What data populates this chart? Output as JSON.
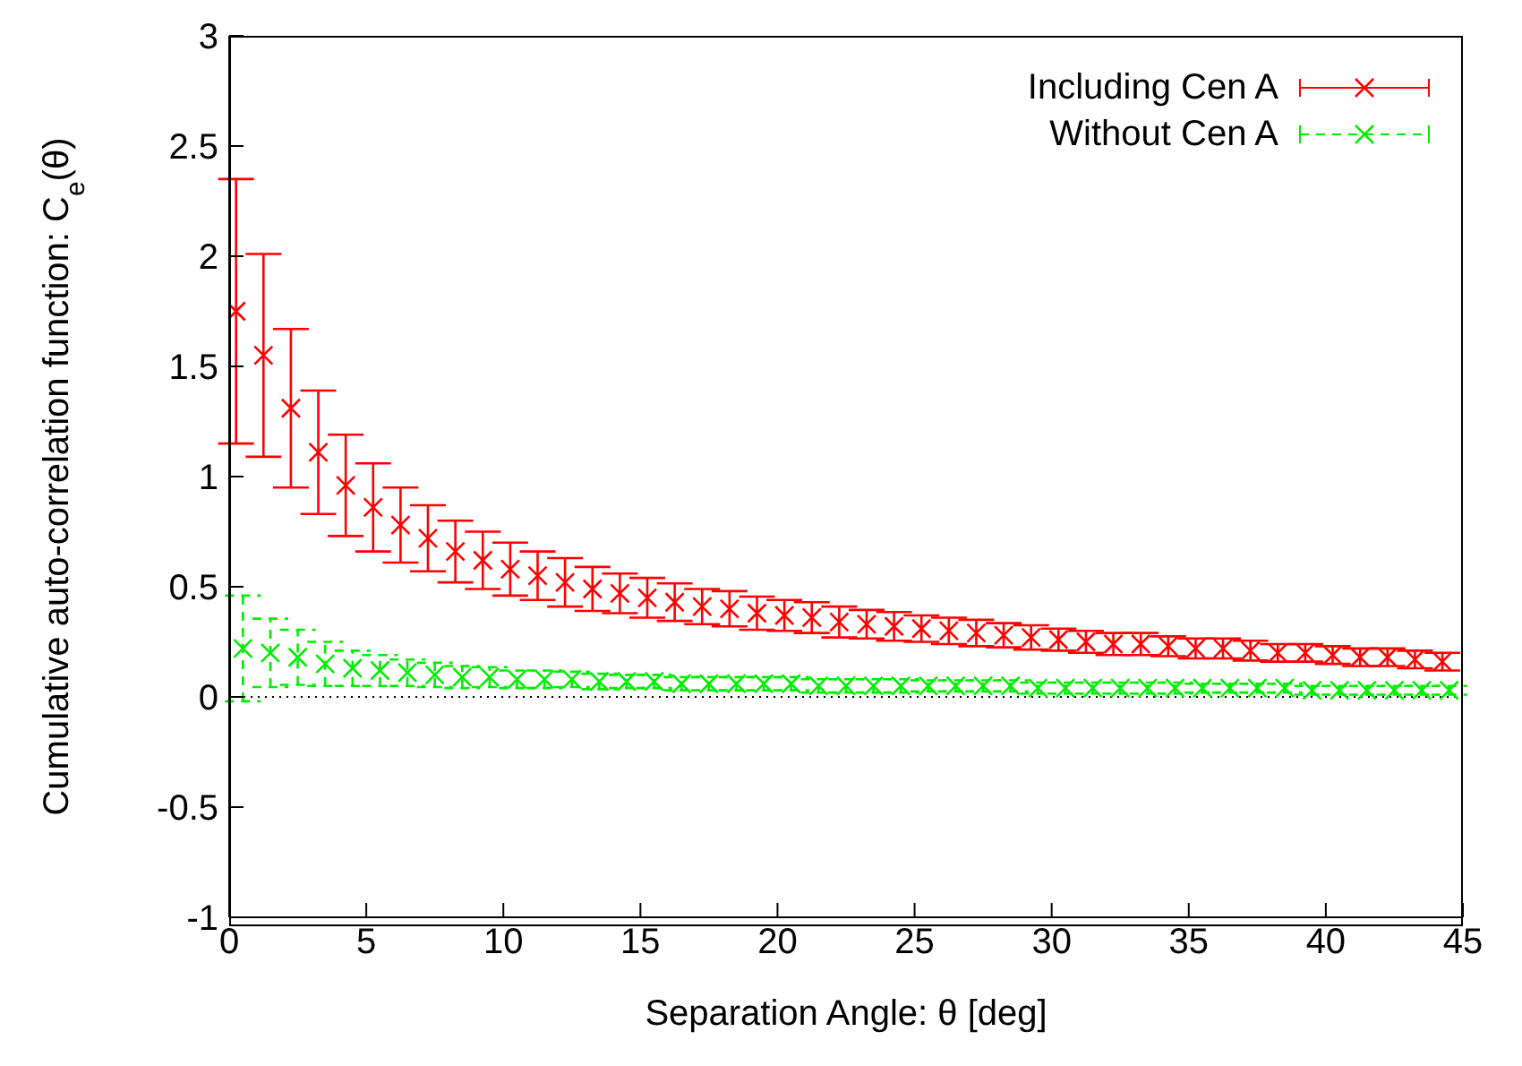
{
  "chart_data": {
    "type": "scatter",
    "xlabel": "Separation Angle: θ [deg]",
    "ylabel": "Cumulative auto-correlation function: C$_{e}$(θ)",
    "xlim": [
      0,
      45
    ],
    "xticks": [
      0,
      5,
      10,
      15,
      20,
      25,
      30,
      35,
      40,
      45
    ],
    "ylim": [
      -1,
      3
    ],
    "yticks": [
      -1,
      -0.5,
      0,
      0.5,
      1,
      1.5,
      2,
      2.5,
      3
    ],
    "legend": "top right",
    "marker": "cross",
    "ref_lines": [
      {
        "axis": "y",
        "value": 0,
        "color": "#000000",
        "line_style": "dotted"
      }
    ],
    "series": [
      {
        "name": "Including Cen A",
        "color": "#ff0000",
        "line_style": "solid",
        "x": [
          0.25,
          1.25,
          2.25,
          3.25,
          4.25,
          5.25,
          6.25,
          7.25,
          8.25,
          9.25,
          10.25,
          11.25,
          12.25,
          13.25,
          14.25,
          15.25,
          16.25,
          17.25,
          18.25,
          19.25,
          20.25,
          21.25,
          22.25,
          23.25,
          24.25,
          25.25,
          26.25,
          27.25,
          28.25,
          29.25,
          30.25,
          31.25,
          32.25,
          33.25,
          34.25,
          35.25,
          36.25,
          37.25,
          38.25,
          39.25,
          40.25,
          41.25,
          42.25,
          43.25,
          44.25
        ],
        "values": [
          1.75,
          1.55,
          1.31,
          1.11,
          0.96,
          0.86,
          0.78,
          0.72,
          0.66,
          0.62,
          0.58,
          0.55,
          0.52,
          0.49,
          0.47,
          0.45,
          0.43,
          0.41,
          0.4,
          0.38,
          0.37,
          0.36,
          0.34,
          0.33,
          0.32,
          0.31,
          0.3,
          0.29,
          0.28,
          0.27,
          0.26,
          0.25,
          0.24,
          0.24,
          0.23,
          0.22,
          0.22,
          0.21,
          0.2,
          0.2,
          0.19,
          0.18,
          0.18,
          0.17,
          0.16
        ],
        "errors": [
          0.6,
          0.46,
          0.36,
          0.28,
          0.23,
          0.2,
          0.17,
          0.15,
          0.14,
          0.13,
          0.12,
          0.11,
          0.11,
          0.1,
          0.09,
          0.09,
          0.085,
          0.08,
          0.08,
          0.075,
          0.07,
          0.07,
          0.07,
          0.065,
          0.065,
          0.06,
          0.06,
          0.06,
          0.055,
          0.055,
          0.05,
          0.05,
          0.05,
          0.05,
          0.045,
          0.045,
          0.045,
          0.045,
          0.04,
          0.04,
          0.04,
          0.04,
          0.04,
          0.04,
          0.04
        ]
      },
      {
        "name": "Without Cen A",
        "color": "#00ee00",
        "line_style": "dashed",
        "x": [
          0.5,
          1.5,
          2.5,
          3.5,
          4.5,
          5.5,
          6.5,
          7.5,
          8.5,
          9.5,
          10.5,
          11.5,
          12.5,
          13.5,
          14.5,
          15.5,
          16.5,
          17.5,
          18.5,
          19.5,
          20.5,
          21.5,
          22.5,
          23.5,
          24.5,
          25.5,
          26.5,
          27.5,
          28.5,
          29.5,
          30.5,
          31.5,
          32.5,
          33.5,
          34.5,
          35.5,
          36.5,
          37.5,
          38.5,
          39.5,
          40.5,
          41.5,
          42.5,
          43.5,
          44.5
        ],
        "values": [
          0.22,
          0.2,
          0.18,
          0.15,
          0.13,
          0.12,
          0.11,
          0.1,
          0.09,
          0.09,
          0.08,
          0.08,
          0.08,
          0.07,
          0.07,
          0.07,
          0.06,
          0.06,
          0.06,
          0.06,
          0.06,
          0.05,
          0.05,
          0.05,
          0.05,
          0.05,
          0.05,
          0.05,
          0.05,
          0.04,
          0.04,
          0.04,
          0.04,
          0.04,
          0.04,
          0.04,
          0.04,
          0.04,
          0.04,
          0.03,
          0.03,
          0.03,
          0.03,
          0.03,
          0.03
        ],
        "errors": [
          0.24,
          0.155,
          0.125,
          0.1,
          0.08,
          0.07,
          0.06,
          0.055,
          0.05,
          0.045,
          0.04,
          0.04,
          0.035,
          0.035,
          0.03,
          0.03,
          0.03,
          0.03,
          0.03,
          0.03,
          0.03,
          0.03,
          0.03,
          0.03,
          0.03,
          0.025,
          0.025,
          0.025,
          0.025,
          0.025,
          0.025,
          0.025,
          0.025,
          0.025,
          0.025,
          0.02,
          0.02,
          0.02,
          0.02,
          0.02,
          0.02,
          0.02,
          0.02,
          0.02,
          0.02
        ]
      }
    ]
  }
}
